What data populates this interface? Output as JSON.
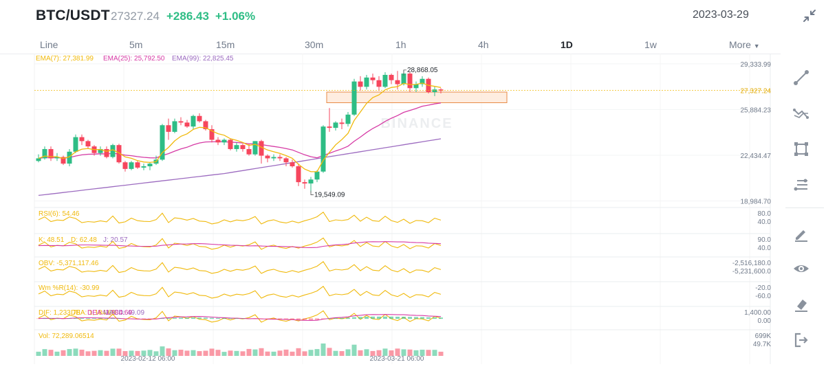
{
  "header": {
    "pair": "BTC/USDT",
    "last_price": "27327.24",
    "change": "+286.43",
    "change_pct": "+1.06%",
    "date": "2023-03-29"
  },
  "tabs": [
    {
      "label": "Line",
      "active": false
    },
    {
      "label": "5m",
      "active": false
    },
    {
      "label": "15m",
      "active": false
    },
    {
      "label": "30m",
      "active": false
    },
    {
      "label": "1h",
      "active": false
    },
    {
      "label": "4h",
      "active": false
    },
    {
      "label": "1D",
      "active": true
    },
    {
      "label": "1w",
      "active": false
    },
    {
      "label": "More",
      "active": false
    }
  ],
  "tools": [
    "trend-line-icon",
    "multi-line-icon",
    "rectangle-icon",
    "fib-icon",
    "pencil-icon",
    "eye-icon",
    "eraser-icon",
    "exit-icon"
  ],
  "colors": {
    "up": "#2ebd85",
    "down": "#f6465d",
    "ema7": "#f0b90b",
    "ema25": "#d63aa5",
    "ema99": "#9c6bc0"
  },
  "chart_data": {
    "type": "candlestick",
    "watermark": "BINANCE",
    "price_axis": {
      "ticks": [
        "29,333.99",
        "25,884.23",
        "22,434.47",
        "18,984.70"
      ],
      "current": "27,327.24"
    },
    "ema_legend": [
      "EMA(7): 27,381.99",
      "EMA(25): 25,792.50",
      "EMA(99): 22,825.45"
    ],
    "annotations": {
      "high": "28,868.05",
      "low": "19,549.09"
    },
    "x_labels": [
      "2023-02-12 06:00",
      "2023-03-21 06:00"
    ],
    "candles": [
      [
        22,
        22.2,
        22.5,
        21.9
      ],
      [
        22.2,
        22.9,
        23.1,
        22.1
      ],
      [
        22.9,
        22.2,
        23.1,
        22
      ],
      [
        22.2,
        22.3,
        22.6,
        22
      ],
      [
        22.3,
        21.8,
        22.4,
        21.7
      ],
      [
        21.8,
        22.7,
        22.9,
        21.6
      ],
      [
        22.7,
        23.8,
        24.0,
        22.6
      ],
      [
        23.8,
        23.5,
        24.0,
        23.2
      ],
      [
        23.5,
        23.1,
        23.6,
        22.9
      ],
      [
        23.1,
        22.6,
        23.2,
        22.4
      ],
      [
        22.6,
        22.9,
        23.1,
        22.4
      ],
      [
        22.9,
        22.3,
        23.1,
        22.2
      ],
      [
        22.3,
        23.2,
        23.3,
        22.2
      ],
      [
        23.2,
        21.9,
        23.3,
        21.8
      ],
      [
        21.9,
        21.4,
        22.0,
        21.2
      ],
      [
        21.4,
        21.9,
        22.0,
        21.3
      ],
      [
        21.9,
        21.5,
        22.0,
        21.4
      ],
      [
        21.5,
        21.6,
        21.8,
        21.3
      ],
      [
        21.6,
        21.8,
        21.9,
        21.3
      ],
      [
        21.8,
        22.1,
        22.4,
        21.7
      ],
      [
        22.1,
        24.7,
        24.8,
        22.0
      ],
      [
        24.7,
        24.2,
        25.2,
        23.6
      ],
      [
        24.2,
        25.0,
        25.2,
        24.1
      ],
      [
        25.0,
        24.9,
        25.3,
        24.7
      ],
      [
        24.9,
        24.6,
        25.1,
        24.5
      ],
      [
        24.6,
        25.4,
        25.5,
        24.4
      ],
      [
        25.4,
        25.0,
        25.6,
        24.9
      ],
      [
        25.0,
        24.4,
        25.1,
        24.3
      ],
      [
        24.4,
        23.6,
        24.7,
        23.4
      ],
      [
        23.6,
        23.4,
        23.8,
        23.2
      ],
      [
        23.4,
        23.6,
        23.7,
        23.2
      ],
      [
        23.6,
        22.9,
        23.7,
        22.8
      ],
      [
        22.9,
        23.2,
        23.4,
        22.7
      ],
      [
        23.2,
        22.9,
        23.3,
        22.7
      ],
      [
        22.9,
        22.5,
        23.3,
        22.4
      ],
      [
        22.5,
        23.5,
        23.5,
        22.4
      ],
      [
        23.5,
        22.4,
        23.6,
        21.8
      ],
      [
        22.4,
        22.2,
        22.5,
        21.9
      ],
      [
        22.2,
        22.3,
        22.5,
        22.0
      ],
      [
        22.3,
        22.2,
        22.5,
        22.0
      ],
      [
        22.2,
        21.9,
        22.3,
        21.6
      ],
      [
        21.9,
        21.6,
        22.1,
        21.5
      ],
      [
        21.6,
        20.4,
        21.8,
        20.1
      ],
      [
        20.4,
        20.3,
        20.6,
        19.9
      ],
      [
        20.3,
        20.6,
        20.8,
        19.6
      ],
      [
        20.6,
        21.2,
        21.3,
        20.4
      ],
      [
        21.2,
        24.6,
        24.7,
        21.1
      ],
      [
        24.6,
        24.5,
        26.0,
        24.2
      ],
      [
        24.5,
        24.9,
        25.0,
        24.3
      ],
      [
        24.9,
        24.8,
        25.2,
        24.4
      ],
      [
        24.8,
        25.5,
        25.7,
        24.6
      ],
      [
        25.5,
        28.0,
        28.2,
        25.4
      ],
      [
        28.0,
        27.6,
        28.4,
        27.3
      ],
      [
        27.6,
        28.3,
        28.5,
        27.4
      ],
      [
        28.3,
        28.1,
        28.6,
        27.8
      ],
      [
        28.1,
        27.6,
        28.4,
        27.3
      ],
      [
        27.6,
        28.5,
        28.7,
        27.5
      ],
      [
        28.5,
        28.1,
        28.6,
        27.8
      ],
      [
        28.1,
        27.8,
        28.8,
        27.4
      ],
      [
        27.8,
        28.6,
        28.87,
        27.7
      ],
      [
        28.6,
        27.5,
        28.7,
        27.2
      ],
      [
        27.5,
        27.8,
        28.0,
        27.2
      ],
      [
        27.8,
        28.2,
        28.4,
        27.6
      ],
      [
        28.2,
        27.2,
        28.3,
        27.1
      ],
      [
        27.2,
        27.4,
        27.6,
        26.9
      ],
      [
        27.4,
        27.3,
        27.5,
        27.1
      ]
    ],
    "indicators": [
      {
        "label": "RSI(6): 54.46",
        "levels": [
          "80.0",
          "40.0"
        ]
      },
      {
        "label": "K: 48.51",
        "label2": "D: 62.48",
        "label3": "J: 20.57",
        "levels": [
          "90.0",
          "40.0"
        ]
      },
      {
        "label": "OBV: -5,371,117.46",
        "levels": [
          "-2,516,180.0",
          "-5,231,600.0"
        ]
      },
      {
        "label": "Wm %R(14): -30.99",
        "levels": [
          "-20.0",
          "-60.0"
        ]
      },
      {
        "label": "DIF: 1,233.78",
        "label2": "DEA: 1,184.69",
        "label3": "MACD: 49.09",
        "levels": [
          "1,400.00",
          "0.00"
        ]
      },
      {
        "label": "Vol: 72,289.06514",
        "levels": [
          "699K",
          "49.7K"
        ]
      }
    ]
  }
}
